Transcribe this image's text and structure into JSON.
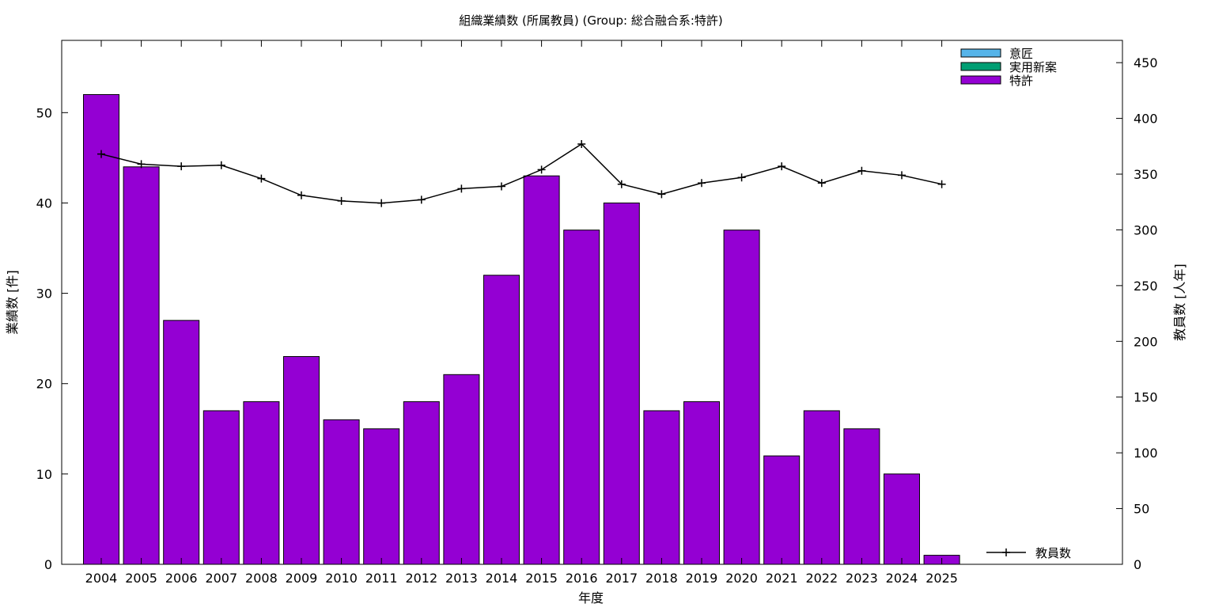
{
  "chart_data": {
    "type": "bar",
    "title": "組織業績数 (所属教員) (Group: 総合融合系:特許)",
    "xlabel": "年度",
    "ylabel": "業績数 [件]",
    "y2label": "教員数 [人年]",
    "categories": [
      "2004",
      "2005",
      "2006",
      "2007",
      "2008",
      "2009",
      "2010",
      "2011",
      "2012",
      "2013",
      "2014",
      "2015",
      "2016",
      "2017",
      "2018",
      "2019",
      "2020",
      "2021",
      "2022",
      "2023",
      "2024",
      "2025"
    ],
    "ylim": [
      0,
      58
    ],
    "y_ticks": [
      0,
      10,
      20,
      30,
      40,
      50
    ],
    "y2lim": [
      0,
      470
    ],
    "y2_ticks": [
      0,
      50,
      100,
      150,
      200,
      250,
      300,
      350,
      400,
      450
    ],
    "series": [
      {
        "name": "意匠",
        "color": "#56b4e9",
        "values": [
          0,
          0,
          0,
          0,
          0,
          0,
          0,
          0,
          0,
          0,
          0,
          0,
          0,
          0,
          0,
          0,
          0,
          0,
          0,
          0,
          0,
          0
        ]
      },
      {
        "name": "実用新案",
        "color": "#009e73",
        "values": [
          0,
          0,
          0,
          0,
          0,
          0,
          0,
          0,
          0,
          0,
          0,
          0,
          0,
          0,
          0,
          0,
          0,
          0,
          0,
          0,
          0,
          0
        ]
      },
      {
        "name": "特許",
        "color": "#9400d3",
        "values": [
          52,
          44,
          27,
          17,
          18,
          23,
          16,
          15,
          18,
          21,
          32,
          43,
          37,
          40,
          17,
          18,
          37,
          12,
          17,
          15,
          10,
          1
        ]
      }
    ],
    "line_series": {
      "name": "教員数",
      "axis": "right",
      "color": "#000000",
      "values": [
        368,
        359,
        357,
        358,
        346,
        331,
        326,
        324,
        327,
        337,
        339,
        354,
        377,
        341,
        332,
        342,
        347,
        357,
        342,
        353,
        349,
        341
      ]
    },
    "legend_position": "top-right",
    "grid": false
  }
}
